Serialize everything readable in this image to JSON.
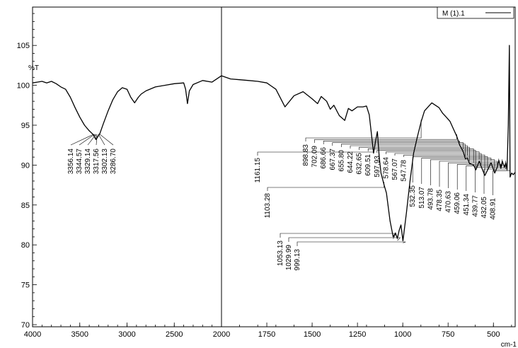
{
  "chart_data": {
    "type": "line",
    "title": "",
    "xlabel": "cm-1",
    "ylabel": "%T",
    "xlim": [
      4000,
      380
    ],
    "ylim": [
      70,
      110
    ],
    "x_ticks": [
      4000,
      3500,
      3000,
      2500,
      2000,
      1750,
      1500,
      1250,
      1000,
      750,
      500
    ],
    "x_tick_labels": [
      "4000",
      "3500",
      "3000",
      "2500",
      "2000",
      "1750",
      "1500",
      "1250",
      "1000",
      "750",
      "500"
    ],
    "y_ticks": [
      70,
      75,
      80,
      85,
      90,
      95,
      100,
      105
    ],
    "y_tick_labels": [
      "70",
      "75",
      "80",
      "85",
      "90",
      "95",
      "100",
      "105"
    ],
    "axis_break_at": 2000,
    "legend": {
      "position": "top-right",
      "entry": "M (1).1"
    },
    "series": [
      {
        "name": "M (1).1",
        "points": [
          [
            4000,
            100.3
          ],
          [
            3950,
            100.4
          ],
          [
            3900,
            100.5
          ],
          [
            3850,
            100.3
          ],
          [
            3800,
            100.5
          ],
          [
            3750,
            100.2
          ],
          [
            3700,
            99.8
          ],
          [
            3650,
            99.5
          ],
          [
            3600,
            98.5
          ],
          [
            3550,
            97.2
          ],
          [
            3500,
            96.0
          ],
          [
            3450,
            95.0
          ],
          [
            3400,
            94.3
          ],
          [
            3356,
            93.8
          ],
          [
            3344,
            93.5
          ],
          [
            3329,
            93.2
          ],
          [
            3317,
            93.4
          ],
          [
            3302,
            93.7
          ],
          [
            3286,
            94.0
          ],
          [
            3250,
            95.2
          ],
          [
            3200,
            96.8
          ],
          [
            3150,
            98.2
          ],
          [
            3100,
            99.2
          ],
          [
            3050,
            99.7
          ],
          [
            3000,
            99.5
          ],
          [
            2960,
            98.5
          ],
          [
            2920,
            97.8
          ],
          [
            2880,
            98.5
          ],
          [
            2850,
            98.9
          ],
          [
            2800,
            99.3
          ],
          [
            2700,
            99.8
          ],
          [
            2600,
            100.0
          ],
          [
            2500,
            100.2
          ],
          [
            2400,
            100.3
          ],
          [
            2380,
            99.5
          ],
          [
            2360,
            97.7
          ],
          [
            2340,
            99.3
          ],
          [
            2300,
            100.1
          ],
          [
            2200,
            100.6
          ],
          [
            2100,
            100.4
          ],
          [
            2050,
            100.8
          ],
          [
            2000,
            101.2
          ],
          [
            1950,
            100.8
          ],
          [
            1900,
            100.7
          ],
          [
            1850,
            100.6
          ],
          [
            1800,
            100.5
          ],
          [
            1750,
            100.3
          ],
          [
            1700,
            99.5
          ],
          [
            1650,
            97.3
          ],
          [
            1600,
            98.7
          ],
          [
            1550,
            99.2
          ],
          [
            1500,
            98.3
          ],
          [
            1470,
            97.7
          ],
          [
            1450,
            98.6
          ],
          [
            1420,
            98.0
          ],
          [
            1400,
            97.0
          ],
          [
            1380,
            97.5
          ],
          [
            1350,
            96.2
          ],
          [
            1320,
            95.6
          ],
          [
            1300,
            97.1
          ],
          [
            1280,
            96.8
          ],
          [
            1250,
            97.3
          ],
          [
            1220,
            97.3
          ],
          [
            1200,
            97.4
          ],
          [
            1185,
            96.3
          ],
          [
            1161,
            91.5
          ],
          [
            1150,
            93.0
          ],
          [
            1140,
            94.2
          ],
          [
            1130,
            91.0
          ],
          [
            1120,
            89.0
          ],
          [
            1103,
            87.5
          ],
          [
            1090,
            86.5
          ],
          [
            1070,
            83.0
          ],
          [
            1053,
            81.0
          ],
          [
            1040,
            81.5
          ],
          [
            1030,
            80.8
          ],
          [
            1020,
            81.8
          ],
          [
            1010,
            82.5
          ],
          [
            999,
            80.5
          ],
          [
            980,
            84.0
          ],
          [
            960,
            88.0
          ],
          [
            940,
            91.5
          ],
          [
            920,
            93.5
          ],
          [
            898,
            95.5
          ],
          [
            880,
            96.8
          ],
          [
            860,
            97.3
          ],
          [
            840,
            97.8
          ],
          [
            820,
            97.5
          ],
          [
            800,
            97.2
          ],
          [
            780,
            96.5
          ],
          [
            760,
            96.0
          ],
          [
            740,
            95.5
          ],
          [
            720,
            94.5
          ],
          [
            702,
            93.6
          ],
          [
            686,
            92.5
          ],
          [
            667,
            91.7
          ],
          [
            655,
            90.8
          ],
          [
            644,
            90.9
          ],
          [
            632,
            90.2
          ],
          [
            609,
            90.0
          ],
          [
            597,
            89.4
          ],
          [
            578,
            90.5
          ],
          [
            567,
            89.8
          ],
          [
            547,
            88.7
          ],
          [
            532,
            89.4
          ],
          [
            513,
            90.3
          ],
          [
            493,
            89.0
          ],
          [
            478,
            89.8
          ],
          [
            470,
            90.6
          ],
          [
            459,
            89.6
          ],
          [
            451,
            90.5
          ],
          [
            439,
            89.7
          ],
          [
            432,
            90.3
          ],
          [
            425,
            89.4
          ],
          [
            418,
            95.0
          ],
          [
            412,
            105.0
          ],
          [
            408,
            88.5
          ],
          [
            400,
            89.0
          ],
          [
            390,
            88.8
          ],
          [
            380,
            89.1
          ]
        ]
      }
    ],
    "annotations": [
      {
        "text": "3356.14",
        "x": 3356.14
      },
      {
        "text": "3344.57",
        "x": 3344.57
      },
      {
        "text": "3329.14",
        "x": 3329.14
      },
      {
        "text": "3317.56",
        "x": 3317.56
      },
      {
        "text": "3302.13",
        "x": 3302.13
      },
      {
        "text": "3286.70",
        "x": 3286.7
      },
      {
        "text": "1161.15",
        "x": 1161.15
      },
      {
        "text": "1103.28",
        "x": 1103.28
      },
      {
        "text": "1053.13",
        "x": 1053.13
      },
      {
        "text": "1029.99",
        "x": 1029.99
      },
      {
        "text": "999.13",
        "x": 999.13
      },
      {
        "text": "898.83",
        "x": 898.83
      },
      {
        "text": "702.09",
        "x": 702.09
      },
      {
        "text": "686.66",
        "x": 686.66
      },
      {
        "text": "667.37",
        "x": 667.37
      },
      {
        "text": "655.80",
        "x": 655.8
      },
      {
        "text": "644.22",
        "x": 644.22
      },
      {
        "text": "632.65",
        "x": 632.65
      },
      {
        "text": "609.51",
        "x": 609.51
      },
      {
        "text": "597.93",
        "x": 597.93
      },
      {
        "text": "578.64",
        "x": 578.64
      },
      {
        "text": "567.07",
        "x": 567.07
      },
      {
        "text": "547.78",
        "x": 547.78
      },
      {
        "text": "532.35",
        "x": 532.35
      },
      {
        "text": "513.07",
        "x": 513.07
      },
      {
        "text": "493.78",
        "x": 493.78
      },
      {
        "text": "478.35",
        "x": 478.35
      },
      {
        "text": "470.63",
        "x": 470.63
      },
      {
        "text": "459.06",
        "x": 459.06
      },
      {
        "text": "451.34",
        "x": 451.34
      },
      {
        "text": "439.77",
        "x": 439.77
      },
      {
        "text": "432.05",
        "x": 432.05
      },
      {
        "text": "408.91",
        "x": 408.91
      }
    ],
    "grid": false,
    "colors": {
      "line": "#000000",
      "background": "#ffffff"
    }
  }
}
